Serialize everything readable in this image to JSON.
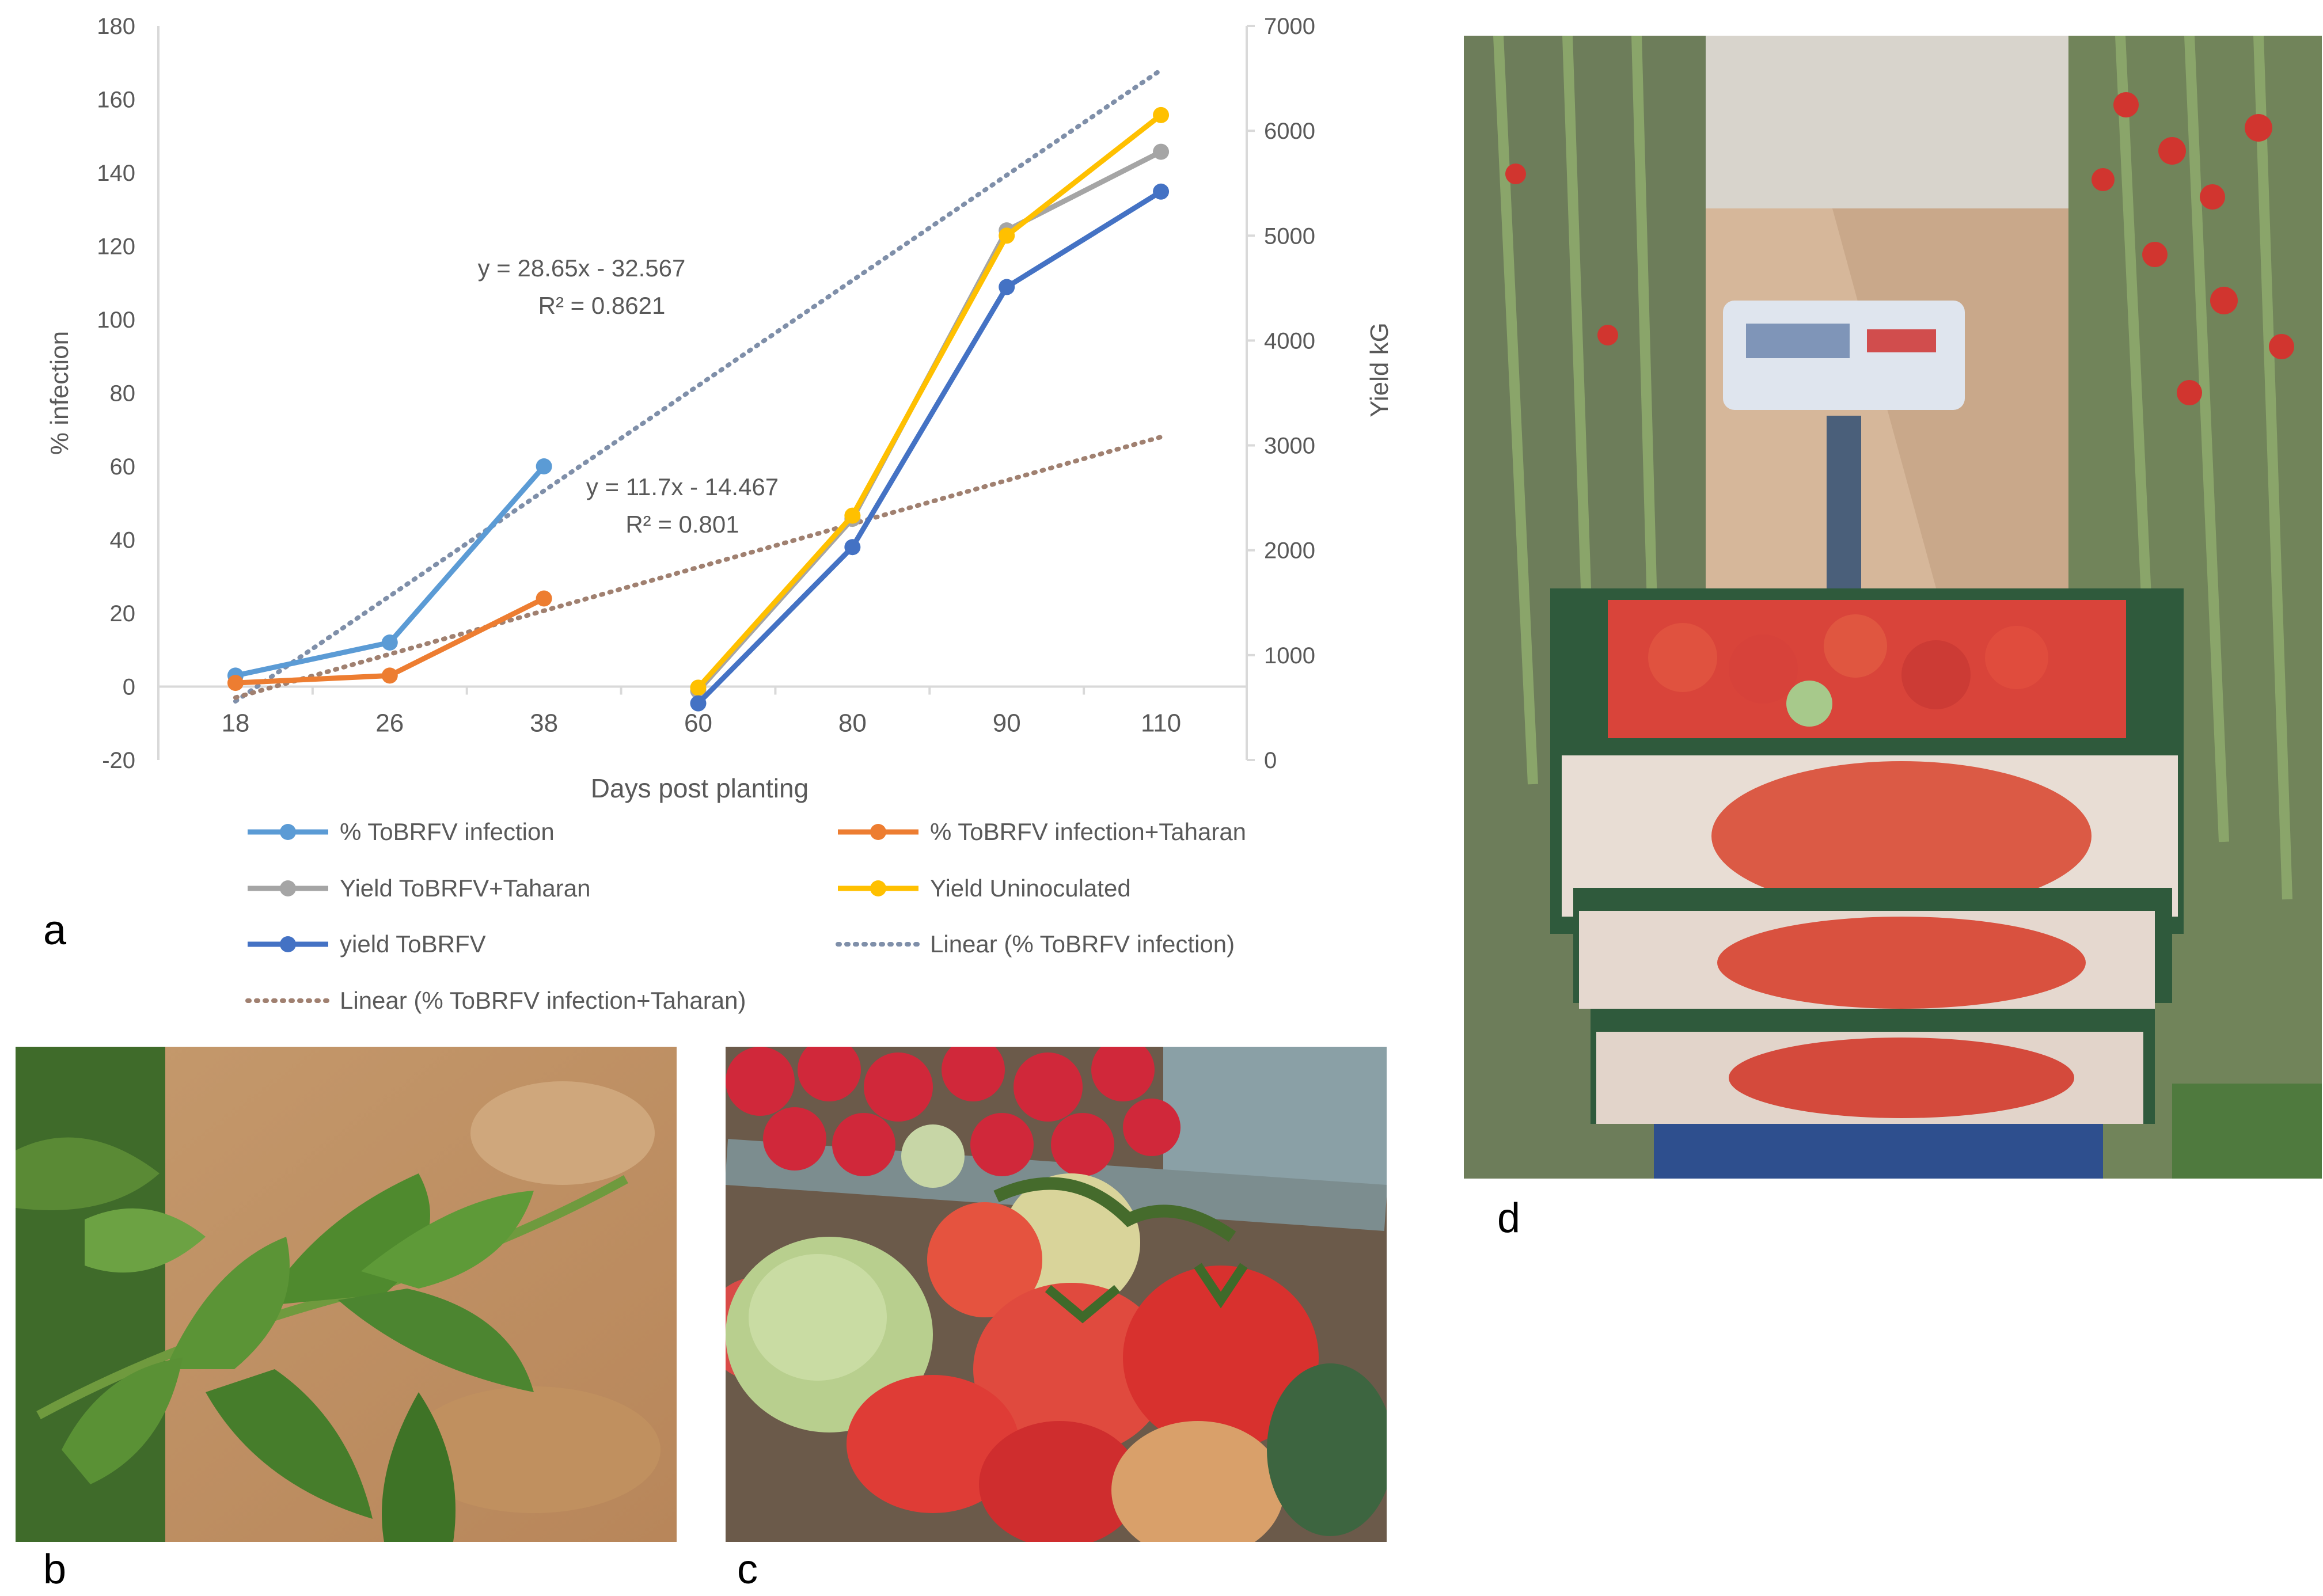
{
  "panel_labels": {
    "a": "a",
    "b": "b",
    "c": "c",
    "d": "d"
  },
  "chart_data": {
    "type": "line",
    "xlabel": "Days post planting",
    "ylabel_left": "% infection",
    "ylabel_right": "Yield kG",
    "categories": [
      "18",
      "26",
      "38",
      "60",
      "80",
      "90",
      "110"
    ],
    "left_axis": {
      "ticks": [
        -20,
        0,
        20,
        40,
        60,
        80,
        100,
        120,
        140,
        160,
        180
      ],
      "ylim": [
        -20,
        180
      ]
    },
    "right_axis": {
      "ticks": [
        0,
        1000,
        2000,
        3000,
        4000,
        5000,
        6000,
        7000
      ],
      "ylim": [
        0,
        7000
      ]
    },
    "series": [
      {
        "name": "% ToBRFV infection",
        "axis": "left",
        "color": "#5B9BD5",
        "style": "line",
        "values": [
          3,
          12,
          60,
          null,
          null,
          null,
          null
        ]
      },
      {
        "name": "% ToBRFV infection+Taharan",
        "axis": "left",
        "color": "#ED7D31",
        "style": "line",
        "values": [
          1,
          3,
          24,
          null,
          null,
          null,
          null
        ]
      },
      {
        "name": "Yield ToBRFV+Taharan",
        "axis": "right",
        "color": "#A5A5A5",
        "style": "line",
        "values": [
          null,
          null,
          null,
          660,
          2300,
          5050,
          5800
        ]
      },
      {
        "name": "Yield Uninoculated",
        "axis": "right",
        "color": "#FFC000",
        "style": "line",
        "values": [
          null,
          null,
          null,
          690,
          2330,
          5000,
          6150
        ]
      },
      {
        "name": "yield ToBRFV",
        "axis": "right",
        "color": "#4472C4",
        "style": "line",
        "values": [
          null,
          null,
          null,
          540,
          2030,
          4510,
          5420
        ]
      },
      {
        "name": "Linear (% ToBRFV infection)",
        "axis": "left",
        "color": "#7F8FA9",
        "style": "dotted",
        "trend": [
          -4,
          168
        ]
      },
      {
        "name": "Linear (% ToBRFV infection+Taharan)",
        "axis": "left",
        "color": "#A08070",
        "style": "dotted",
        "trend": [
          -3,
          68
        ]
      }
    ],
    "annotations": [
      {
        "text": "y = 28.65x - 32.567"
      },
      {
        "text": "R² = 0.8621"
      },
      {
        "text": "y = 11.7x - 14.467"
      },
      {
        "text": "R² = 0.801"
      }
    ],
    "legend_order": [
      0,
      1,
      2,
      3,
      4,
      5,
      6
    ],
    "legend_placement": "bottom",
    "grid": false
  },
  "colors": {
    "axis": "#D9D9D9",
    "text": "#595959"
  },
  "photos": {
    "b": {
      "subject": "tomato-leaf-icon"
    },
    "c": {
      "subject": "tomatoes-in-crate-icon"
    },
    "d": {
      "subject": "greenhouse-scale-crates-icon"
    }
  }
}
